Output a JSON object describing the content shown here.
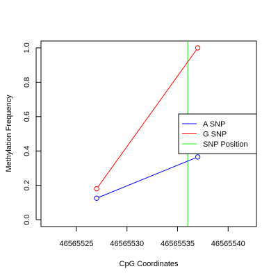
{
  "chart_data": {
    "type": "line",
    "title": "",
    "xlabel": "CpG Coordinates",
    "ylabel": "Methylation Frequency",
    "xlim": [
      46565521.5,
      46565542.8
    ],
    "ylim": [
      -0.04,
      1.04
    ],
    "x_ticks": [
      46565525,
      46565530,
      46565535,
      46565540
    ],
    "y_ticks": [
      0.0,
      0.2,
      0.4,
      0.6,
      0.8,
      1.0
    ],
    "x_tick_labels": [
      "46565525",
      "46565530",
      "46565535",
      "46565540"
    ],
    "y_tick_labels": [
      "0.0",
      "0.2",
      "0.4",
      "0.6",
      "0.8",
      "1.0"
    ],
    "grid": false,
    "legend_position": "right",
    "series": [
      {
        "name": "A SNP",
        "color": "#0000ff",
        "x": [
          46565527,
          46565537
        ],
        "y": [
          0.125,
          0.365
        ]
      },
      {
        "name": "G SNP",
        "color": "#ff0000",
        "x": [
          46565527,
          46565537
        ],
        "y": [
          0.18,
          1.0
        ]
      }
    ],
    "vline": {
      "name": "SNP Position",
      "color": "#00ff00",
      "x": 46565536
    }
  }
}
